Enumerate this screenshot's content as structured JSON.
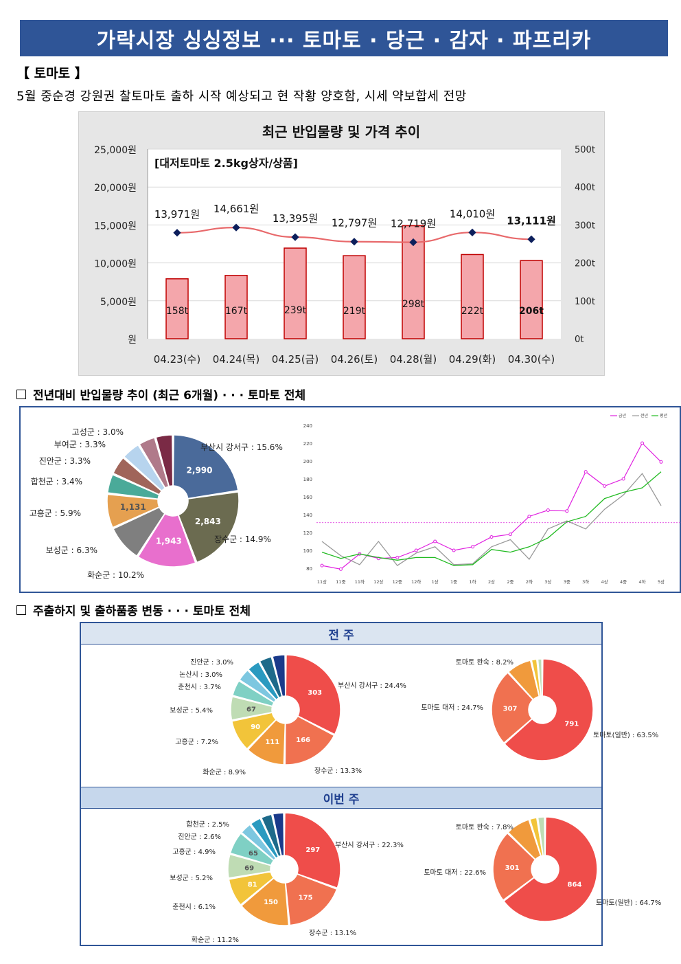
{
  "banner": "가락시장 싱싱정보 ··· 토마토 · 당근 · 감자 · 파프리카",
  "section_title": "【 토마토 】",
  "summary": "5월 중순경 강원권 찰토마토 출하 시작 예상되고 현 작황 양호함, 시세 약보합세 전망",
  "colors": {
    "banner": "#2f5597",
    "bar": "#f4a6ab",
    "bar_border": "#c00000",
    "price_line": "#e8696b",
    "pie_blue": "#4a6a9a"
  },
  "chart_data": [
    {
      "type": "bar",
      "title": "최근 반입물량 및 가격 추이",
      "subtitle": "[대저토마토 2.5kg상자/상품]",
      "categories": [
        "04.23(수)",
        "04.24(목)",
        "04.25(금)",
        "04.26(토)",
        "04.28(월)",
        "04.29(화)",
        "04.30(수)"
      ],
      "series": [
        {
          "name": "",
          "kind": "bar",
          "axis": "right",
          "values": [
            158,
            167,
            239,
            219,
            298,
            222,
            206
          ],
          "labels": [
            "158t",
            "167t",
            "239t",
            "219t",
            "298t",
            "222t",
            "206t"
          ]
        },
        {
          "name": "",
          "kind": "line",
          "axis": "left",
          "values": [
            13971,
            14661,
            13395,
            12797,
            12719,
            14010,
            13111
          ],
          "labels": [
            "13,971원",
            "14,661원",
            "13,395원",
            "12,797원",
            "12,719원",
            "14,010원",
            "13,111원"
          ]
        }
      ],
      "left_ticks": [
        "25,000원",
        "20,000원",
        "15,000원",
        "10,000원",
        "5,000원",
        "원"
      ],
      "right_ticks": [
        "500t",
        "400t",
        "300t",
        "200t",
        "100t",
        "0t"
      ],
      "ylim_left": [
        0,
        25000
      ],
      "ylim_right": [
        0,
        500
      ],
      "grid": true
    },
    {
      "type": "pie",
      "slices": [
        {
          "label": "부산시 강서구 : 15.6%",
          "value": 15.6,
          "inner": "2,990",
          "color": "#4a6a9a"
        },
        {
          "label": "장수군 : 14.9%",
          "value": 14.9,
          "inner": "2,843",
          "color": "#6b6b50"
        },
        {
          "label": "화순군 : 10.2%",
          "value": 10.2,
          "inner": "1,943",
          "color": "#e86fcd"
        },
        {
          "label": "보성군 : 6.3%",
          "value": 6.3,
          "inner": "",
          "color": "#7f7f7f"
        },
        {
          "label": "고흥군 : 5.9%",
          "value": 5.9,
          "inner": "1,131",
          "color": "#e5a050"
        },
        {
          "label": "합천군 : 3.4%",
          "value": 3.4,
          "inner": "",
          "color": "#4aaa99"
        },
        {
          "label": "진안군 : 3.3%",
          "value": 3.3,
          "inner": "",
          "color": "#a0655a"
        },
        {
          "label": "부여군 : 3.3%",
          "value": 3.3,
          "inner": "",
          "color": "#b7d4ee"
        },
        {
          "label": "고성군 : 3.0%",
          "value": 3.0,
          "inner": "",
          "color": "#b07a8a"
        },
        {
          "label": "",
          "value": 3.0,
          "inner": "",
          "color": "#7a2a45"
        }
      ]
    },
    {
      "type": "line",
      "legend": [
        "금년",
        "전년",
        "평년"
      ],
      "colors": [
        "#e020e0",
        "#9a9a9a",
        "#22bb22"
      ],
      "y_ticks": [
        "240",
        "220",
        "200",
        "180",
        "160",
        "140",
        "120",
        "100",
        "80"
      ],
      "ylim": [
        80,
        240
      ],
      "x_ticks": [
        "11상",
        "11중",
        "11하",
        "12상",
        "12중",
        "12하",
        "1상",
        "1중",
        "1하",
        "2상",
        "2중",
        "2하",
        "3상",
        "3중",
        "3하",
        "4상",
        "4중",
        "4하",
        "5상"
      ],
      "reference_line": 131,
      "series": [
        {
          "name": "금년",
          "values": [
            83,
            79,
            96,
            91,
            92,
            100,
            110,
            100,
            104,
            115,
            118,
            138,
            145,
            144,
            188,
            172,
            180,
            220,
            199
          ]
        },
        {
          "name": "전년",
          "values": [
            110,
            94,
            84,
            110,
            83,
            97,
            104,
            84,
            85,
            104,
            112,
            90,
            124,
            133,
            124,
            146,
            162,
            186,
            150
          ]
        },
        {
          "name": "평년",
          "values": [
            98,
            91,
            96,
            92,
            89,
            92,
            92,
            83,
            84,
            101,
            98,
            104,
            114,
            132,
            138,
            158,
            165,
            170,
            188
          ]
        }
      ]
    },
    {
      "type": "pie",
      "slices": [
        {
          "label": "부산시 강서구 : 24.4%",
          "value": 24.4,
          "inner": "303",
          "color": "#ef4d4a"
        },
        {
          "label": "장수군 : 13.3%",
          "value": 13.3,
          "inner": "166",
          "color": "#f07150"
        },
        {
          "label": "화순군 : 8.9%",
          "value": 8.9,
          "inner": "111",
          "color": "#f09a3c"
        },
        {
          "label": "고흥군 : 7.2%",
          "value": 7.2,
          "inner": "90",
          "color": "#f2c43a"
        },
        {
          "label": "보성군 : 5.4%",
          "value": 5.4,
          "inner": "67",
          "color": "#bfdcb4"
        },
        {
          "label": "춘천시 : 3.7%",
          "value": 3.7,
          "inner": "",
          "color": "#7fd0c4"
        },
        {
          "label": "논산시 : 3.0%",
          "value": 3.0,
          "inner": "",
          "color": "#7dc7e0"
        },
        {
          "label": "진안군 : 3.0%",
          "value": 3.0,
          "inner": "",
          "color": "#2a9ac0"
        },
        {
          "label": "",
          "value": 3.0,
          "inner": "",
          "color": "#1d6a8a"
        },
        {
          "label": "",
          "value": 3.0,
          "inner": "",
          "color": "#1a3a8a"
        }
      ]
    },
    {
      "type": "pie",
      "slices": [
        {
          "label": "토마토(일반) : 63.5%",
          "value": 63.5,
          "inner": "791",
          "color": "#ef4d4a"
        },
        {
          "label": "토마토 대저 : 24.7%",
          "value": 24.7,
          "inner": "307",
          "color": "#f07150"
        },
        {
          "label": "토마토 완숙 : 8.2%",
          "value": 8.2,
          "inner": "",
          "color": "#f09a3c"
        },
        {
          "label": "",
          "value": 2.0,
          "inner": "",
          "color": "#f2c43a"
        },
        {
          "label": "",
          "value": 1.6,
          "inner": "",
          "color": "#bfdcb4"
        }
      ]
    },
    {
      "type": "pie",
      "slices": [
        {
          "label": "부산시 강서구 : 22.3%",
          "value": 22.3,
          "inner": "297",
          "color": "#ef4d4a"
        },
        {
          "label": "장수군 : 13.1%",
          "value": 13.1,
          "inner": "175",
          "color": "#f07150"
        },
        {
          "label": "화순군 : 11.2%",
          "value": 11.2,
          "inner": "150",
          "color": "#f09a3c"
        },
        {
          "label": "춘천시 : 6.1%",
          "value": 6.1,
          "inner": "81",
          "color": "#f2c43a"
        },
        {
          "label": "보성군 : 5.2%",
          "value": 5.2,
          "inner": "69",
          "color": "#bfdcb4"
        },
        {
          "label": "고흥군 : 4.9%",
          "value": 4.9,
          "inner": "65",
          "color": "#7fd0c4"
        },
        {
          "label": "진안군 : 2.6%",
          "value": 2.6,
          "inner": "",
          "color": "#7dc7e0"
        },
        {
          "label": "합천군 : 2.5%",
          "value": 2.5,
          "inner": "",
          "color": "#2a9ac0"
        },
        {
          "label": "",
          "value": 2.5,
          "inner": "",
          "color": "#1d6a8a"
        },
        {
          "label": "",
          "value": 2.5,
          "inner": "",
          "color": "#1a3a8a"
        }
      ]
    },
    {
      "type": "pie",
      "slices": [
        {
          "label": "토마토(일반) : 64.7%",
          "value": 64.7,
          "inner": "864",
          "color": "#ef4d4a"
        },
        {
          "label": "토마토 대저 : 22.6%",
          "value": 22.6,
          "inner": "301",
          "color": "#f07150"
        },
        {
          "label": "토마토 완숙 : 7.8%",
          "value": 7.8,
          "inner": "",
          "color": "#f09a3c"
        },
        {
          "label": "",
          "value": 2.5,
          "inner": "",
          "color": "#f2c43a"
        },
        {
          "label": "",
          "value": 2.4,
          "inner": "",
          "color": "#bfdcb4"
        }
      ]
    }
  ],
  "section2_heading": "전년대비 반입물량 추이 (최근 6개월) · · · 토마토 전체",
  "section3_heading": "주출하지 및 출하품종 변동 · · · 토마토 전체",
  "prev_week_label": "전 주",
  "this_week_label": "이번 주"
}
